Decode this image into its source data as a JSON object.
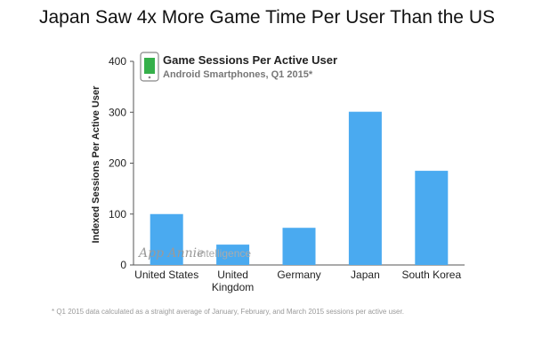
{
  "header": {
    "title": "Japan Saw 4x More Game Time Per User Than the US"
  },
  "chart_data": {
    "type": "bar",
    "title": "Game Sessions Per Active User",
    "subtitle": "Android Smartphones, Q1 2015*",
    "xlabel": "",
    "ylabel": "Indexed Sessions Per Active User",
    "categories": [
      "United States",
      "United Kingdom",
      "Germany",
      "Japan",
      "South Korea"
    ],
    "category_lines": [
      [
        "United States"
      ],
      [
        "United",
        "Kingdom"
      ],
      [
        "Germany"
      ],
      [
        "Japan"
      ],
      [
        "South Korea"
      ]
    ],
    "values": [
      100,
      40,
      73,
      301,
      185
    ],
    "ylim": [
      0,
      400
    ],
    "yticks": [
      0,
      100,
      200,
      300,
      400
    ],
    "grid": false,
    "bar_color": "#4aaaf0",
    "icon_color": "#35b04a"
  },
  "watermark": {
    "brand": "App Annie",
    "word": "intelligence"
  },
  "footnote": "* Q1 2015 data calculated as a straight average of January, February, and March 2015 sessions per active user."
}
